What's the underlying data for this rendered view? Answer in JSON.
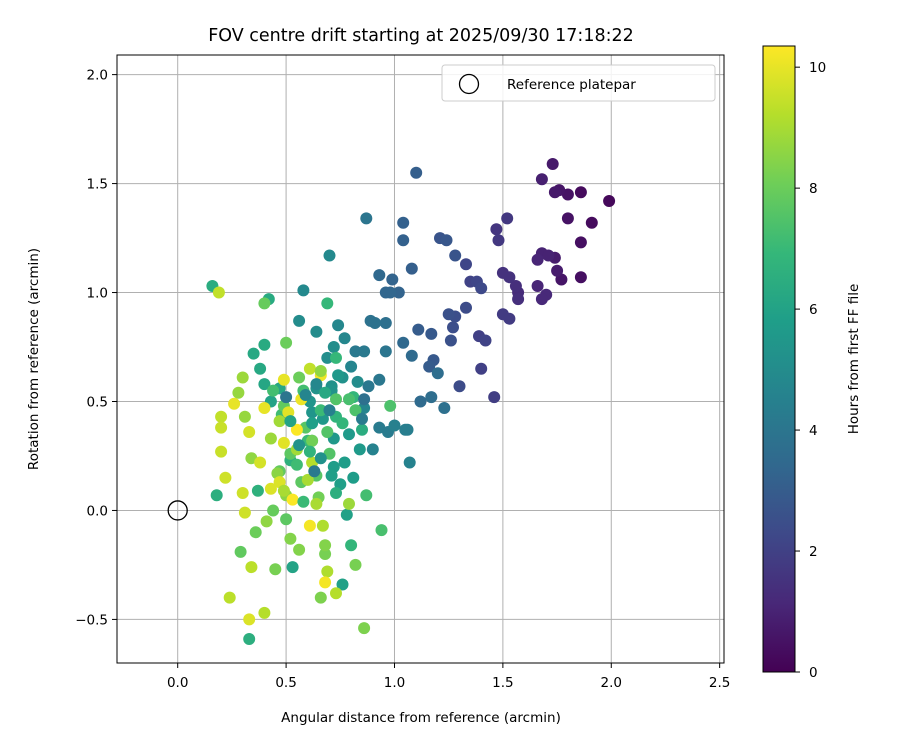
{
  "chart_data": {
    "type": "scatter",
    "title": "FOV centre drift starting at 2025/09/30 17:18:22",
    "xlabel": "Angular distance from reference (arcmin)",
    "ylabel": "Rotation from reference (arcmin)",
    "xlim": [
      -0.28,
      2.52
    ],
    "ylim": [
      -0.7,
      2.09
    ],
    "xticks": [
      0.0,
      0.5,
      1.0,
      1.5,
      2.0,
      2.5
    ],
    "xtick_labels": [
      "0.0",
      "0.5",
      "1.0",
      "1.5",
      "2.0",
      "2.5"
    ],
    "yticks": [
      -0.5,
      0.0,
      0.5,
      1.0,
      1.5,
      2.0
    ],
    "ytick_labels": [
      "−0.5",
      "0.0",
      "0.5",
      "1.0",
      "1.5",
      "2.0"
    ],
    "grid": true,
    "legend": {
      "position": "top-right",
      "entries": [
        "Reference platepar"
      ]
    },
    "reference_point": {
      "x": 0.0,
      "y": 0.0,
      "label": "Reference platepar"
    },
    "colorbar": {
      "label": "Hours from first FF file",
      "range": [
        0,
        10.35
      ],
      "ticks": [
        0,
        2,
        4,
        6,
        8,
        10
      ],
      "tick_labels": [
        "0",
        "2",
        "4",
        "6",
        "8",
        "10"
      ],
      "colormap": "viridis"
    },
    "points_columns": [
      "x",
      "y",
      "hours"
    ],
    "points": [
      [
        1.99,
        1.42,
        0.2
      ],
      [
        1.91,
        1.32,
        0.3
      ],
      [
        1.86,
        1.46,
        0.3
      ],
      [
        1.86,
        1.23,
        0.4
      ],
      [
        1.86,
        1.07,
        0.4
      ],
      [
        1.8,
        1.45,
        0.5
      ],
      [
        1.8,
        1.34,
        0.5
      ],
      [
        1.76,
        1.47,
        0.6
      ],
      [
        1.77,
        1.06,
        0.6
      ],
      [
        1.74,
        1.46,
        0.7
      ],
      [
        1.73,
        1.59,
        0.7
      ],
      [
        1.75,
        1.1,
        0.8
      ],
      [
        1.74,
        1.16,
        0.8
      ],
      [
        1.68,
        1.52,
        0.9
      ],
      [
        1.68,
        1.18,
        1.0
      ],
      [
        1.71,
        1.17,
        1.0
      ],
      [
        1.66,
        1.15,
        1.1
      ],
      [
        1.66,
        1.03,
        1.1
      ],
      [
        1.7,
        0.99,
        1.2
      ],
      [
        1.68,
        0.97,
        1.2
      ],
      [
        1.57,
        1.0,
        1.3
      ],
      [
        1.57,
        0.97,
        1.4
      ],
      [
        1.56,
        1.03,
        1.4
      ],
      [
        1.53,
        1.07,
        1.5
      ],
      [
        1.5,
        1.09,
        1.5
      ],
      [
        1.47,
        1.29,
        1.6
      ],
      [
        1.52,
        1.34,
        1.7
      ],
      [
        1.48,
        1.24,
        1.7
      ],
      [
        1.5,
        0.9,
        1.8
      ],
      [
        1.53,
        0.88,
        1.8
      ],
      [
        1.46,
        0.52,
        1.9
      ],
      [
        1.4,
        0.65,
        2.0
      ],
      [
        1.39,
        0.8,
        2.0
      ],
      [
        1.42,
        0.78,
        2.1
      ],
      [
        1.35,
        1.05,
        2.1
      ],
      [
        1.33,
        1.13,
        2.2
      ],
      [
        1.38,
        1.05,
        2.2
      ],
      [
        1.4,
        1.02,
        2.3
      ],
      [
        1.33,
        0.93,
        2.4
      ],
      [
        1.3,
        0.57,
        2.4
      ],
      [
        1.28,
        0.89,
        2.5
      ],
      [
        1.27,
        0.84,
        2.5
      ],
      [
        1.26,
        0.78,
        2.6
      ],
      [
        1.25,
        0.9,
        2.6
      ],
      [
        1.28,
        1.17,
        2.7
      ],
      [
        1.21,
        1.25,
        2.7
      ],
      [
        1.24,
        1.24,
        2.8
      ],
      [
        1.17,
        0.81,
        2.9
      ],
      [
        1.18,
        0.69,
        2.9
      ],
      [
        1.16,
        0.66,
        3.0
      ],
      [
        1.11,
        0.83,
        3.0
      ],
      [
        1.1,
        1.55,
        3.1
      ],
      [
        1.08,
        1.11,
        3.1
      ],
      [
        1.04,
        1.24,
        3.2
      ],
      [
        1.04,
        1.32,
        3.2
      ],
      [
        1.02,
        1.0,
        3.3
      ],
      [
        0.99,
        1.06,
        3.3
      ],
      [
        0.98,
        1.0,
        3.4
      ],
      [
        0.96,
        1.0,
        3.4
      ],
      [
        0.93,
        1.08,
        3.5
      ],
      [
        1.04,
        0.77,
        3.5
      ],
      [
        1.08,
        0.71,
        3.6
      ],
      [
        1.12,
        0.5,
        3.6
      ],
      [
        1.17,
        0.52,
        3.7
      ],
      [
        1.2,
        0.63,
        3.7
      ],
      [
        1.23,
        0.47,
        3.8
      ],
      [
        0.96,
        0.86,
        3.8
      ],
      [
        0.91,
        0.86,
        3.9
      ],
      [
        0.89,
        0.87,
        3.9
      ],
      [
        0.87,
        1.34,
        4.0
      ],
      [
        0.96,
        0.73,
        4.0
      ],
      [
        0.93,
        0.6,
        4.1
      ],
      [
        0.88,
        0.57,
        4.1
      ],
      [
        0.86,
        0.73,
        4.2
      ],
      [
        0.82,
        0.73,
        4.2
      ],
      [
        0.93,
        0.38,
        4.3
      ],
      [
        0.97,
        0.36,
        4.3
      ],
      [
        1.05,
        0.37,
        4.4
      ],
      [
        1.06,
        0.37,
        4.4
      ],
      [
        1.0,
        0.39,
        4.5
      ],
      [
        1.07,
        0.22,
        4.6
      ],
      [
        0.9,
        0.28,
        4.6
      ],
      [
        0.86,
        0.47,
        4.7
      ],
      [
        0.8,
        0.66,
        4.7
      ],
      [
        0.77,
        0.79,
        4.8
      ],
      [
        0.74,
        0.85,
        4.8
      ],
      [
        0.7,
        1.17,
        4.9
      ],
      [
        0.58,
        1.01,
        4.9
      ],
      [
        0.64,
        0.82,
        5.0
      ],
      [
        0.56,
        0.87,
        5.0
      ],
      [
        0.69,
        0.7,
        5.1
      ],
      [
        0.72,
        0.75,
        5.1
      ],
      [
        0.76,
        0.61,
        5.2
      ],
      [
        0.71,
        0.57,
        5.2
      ],
      [
        0.71,
        0.55,
        5.3
      ],
      [
        0.64,
        0.56,
        5.3
      ],
      [
        0.61,
        0.5,
        5.4
      ],
      [
        0.62,
        0.45,
        5.4
      ],
      [
        0.67,
        0.42,
        5.5
      ],
      [
        0.72,
        0.33,
        5.5
      ],
      [
        0.79,
        0.35,
        5.6
      ],
      [
        0.84,
        0.28,
        5.6
      ],
      [
        0.77,
        0.22,
        5.7
      ],
      [
        0.72,
        0.2,
        5.7
      ],
      [
        0.71,
        0.16,
        5.8
      ],
      [
        0.75,
        0.12,
        5.8
      ],
      [
        0.78,
        -0.02,
        5.9
      ],
      [
        0.76,
        -0.34,
        5.9
      ],
      [
        0.53,
        -0.26,
        6.0
      ],
      [
        0.43,
        0.5,
        6.0
      ],
      [
        0.47,
        0.56,
        6.1
      ],
      [
        0.4,
        0.58,
        6.1
      ],
      [
        0.38,
        0.65,
        6.2
      ],
      [
        0.35,
        0.72,
        6.2
      ],
      [
        0.4,
        0.76,
        6.3
      ],
      [
        0.42,
        0.97,
        6.3
      ],
      [
        0.16,
        1.03,
        6.4
      ],
      [
        0.18,
        0.07,
        6.5
      ],
      [
        0.33,
        -0.59,
        6.5
      ],
      [
        0.37,
        0.09,
        6.6
      ],
      [
        0.52,
        0.23,
        6.6
      ],
      [
        0.62,
        0.32,
        6.7
      ],
      [
        0.73,
        0.43,
        6.7
      ],
      [
        0.76,
        0.4,
        6.8
      ],
      [
        0.81,
        0.52,
        6.8
      ],
      [
        0.73,
        0.7,
        6.9
      ],
      [
        0.69,
        0.95,
        6.9
      ],
      [
        0.66,
        0.46,
        7.0
      ],
      [
        0.6,
        0.32,
        7.0
      ],
      [
        0.55,
        0.21,
        7.1
      ],
      [
        0.48,
        0.44,
        7.1
      ],
      [
        0.44,
        0.55,
        7.2
      ],
      [
        0.87,
        0.07,
        7.2
      ],
      [
        0.94,
        -0.09,
        7.3
      ],
      [
        0.98,
        0.48,
        7.4
      ],
      [
        0.82,
        0.46,
        7.4
      ],
      [
        0.73,
        0.51,
        7.5
      ],
      [
        0.69,
        0.36,
        7.5
      ],
      [
        0.64,
        0.16,
        7.6
      ],
      [
        0.59,
        0.38,
        7.6
      ],
      [
        0.57,
        0.13,
        7.7
      ],
      [
        0.52,
        0.26,
        7.7
      ],
      [
        0.49,
        0.48,
        7.8
      ],
      [
        0.47,
        0.18,
        7.8
      ],
      [
        0.44,
        0.0,
        7.9
      ],
      [
        0.4,
        0.95,
        7.9
      ],
      [
        0.5,
        0.77,
        8.0
      ],
      [
        0.56,
        0.61,
        8.0
      ],
      [
        0.62,
        0.32,
        8.1
      ],
      [
        0.65,
        0.06,
        8.1
      ],
      [
        0.68,
        -0.2,
        8.2
      ],
      [
        0.82,
        -0.25,
        8.2
      ],
      [
        0.86,
        -0.54,
        8.3
      ],
      [
        0.66,
        -0.4,
        8.3
      ],
      [
        0.56,
        -0.18,
        8.4
      ],
      [
        0.52,
        -0.13,
        8.4
      ],
      [
        0.5,
        0.07,
        8.5
      ],
      [
        0.46,
        0.17,
        8.5
      ],
      [
        0.41,
        -0.05,
        8.6
      ],
      [
        0.34,
        0.24,
        8.6
      ],
      [
        0.31,
        0.43,
        8.7
      ],
      [
        0.28,
        0.54,
        8.7
      ],
      [
        0.3,
        0.61,
        8.8
      ],
      [
        0.43,
        0.33,
        8.8
      ],
      [
        0.47,
        0.41,
        8.9
      ],
      [
        0.55,
        0.28,
        8.9
      ],
      [
        0.6,
        0.14,
        9.0
      ],
      [
        0.64,
        0.03,
        9.0
      ],
      [
        0.67,
        -0.07,
        9.1
      ],
      [
        0.69,
        -0.28,
        9.1
      ],
      [
        0.73,
        -0.38,
        9.2
      ],
      [
        0.4,
        -0.47,
        9.2
      ],
      [
        0.24,
        -0.4,
        9.3
      ],
      [
        0.34,
        -0.26,
        9.3
      ],
      [
        0.19,
        1.0,
        9.4
      ],
      [
        0.2,
        0.43,
        9.4
      ],
      [
        0.2,
        0.38,
        9.5
      ],
      [
        0.2,
        0.27,
        9.5
      ],
      [
        0.22,
        0.15,
        9.6
      ],
      [
        0.3,
        0.08,
        9.6
      ],
      [
        0.33,
        0.36,
        9.7
      ],
      [
        0.38,
        0.22,
        9.7
      ],
      [
        0.43,
        0.1,
        9.8
      ],
      [
        0.47,
        0.13,
        9.8
      ],
      [
        0.49,
        0.31,
        9.9
      ],
      [
        0.51,
        0.45,
        9.9
      ],
      [
        0.26,
        0.49,
        10.0
      ],
      [
        0.49,
        0.6,
        10.0
      ],
      [
        0.57,
        0.51,
        10.1
      ],
      [
        0.66,
        0.62,
        10.1
      ],
      [
        0.68,
        -0.33,
        10.2
      ],
      [
        0.61,
        -0.07,
        10.2
      ],
      [
        0.53,
        0.05,
        10.3
      ],
      [
        0.55,
        0.37,
        10.3
      ],
      [
        0.4,
        0.47,
        10.0
      ],
      [
        0.33,
        -0.5,
        9.8
      ],
      [
        0.31,
        -0.01,
        9.6
      ],
      [
        0.61,
        0.65,
        9.4
      ],
      [
        0.62,
        0.22,
        9.2
      ],
      [
        0.49,
        0.09,
        9.0
      ],
      [
        0.79,
        0.03,
        8.8
      ],
      [
        0.66,
        0.64,
        8.6
      ],
      [
        0.68,
        -0.16,
        8.4
      ],
      [
        0.45,
        -0.27,
        8.2
      ],
      [
        0.36,
        -0.1,
        8.0
      ],
      [
        0.29,
        -0.19,
        7.8
      ],
      [
        0.5,
        -0.04,
        7.7
      ],
      [
        0.7,
        0.26,
        7.5
      ],
      [
        0.79,
        0.51,
        7.3
      ],
      [
        0.58,
        0.55,
        7.2
      ],
      [
        0.58,
        0.04,
        7.0
      ],
      [
        0.8,
        -0.16,
        6.8
      ],
      [
        0.61,
        0.27,
        6.7
      ],
      [
        0.73,
        0.08,
        6.5
      ],
      [
        0.85,
        0.37,
        6.4
      ],
      [
        0.68,
        0.54,
        6.2
      ],
      [
        0.52,
        0.41,
        6.0
      ],
      [
        0.62,
        0.4,
        5.8
      ],
      [
        0.81,
        0.15,
        5.7
      ],
      [
        0.74,
        0.62,
        5.5
      ],
      [
        0.56,
        0.3,
        5.3
      ],
      [
        0.66,
        0.24,
        5.2
      ],
      [
        0.83,
        0.59,
        5.0
      ],
      [
        0.64,
        0.58,
        4.8
      ],
      [
        0.59,
        0.53,
        4.7
      ],
      [
        0.7,
        0.46,
        4.5
      ],
      [
        0.85,
        0.42,
        4.3
      ],
      [
        0.63,
        0.18,
        4.2
      ],
      [
        0.5,
        0.52,
        4.0
      ],
      [
        0.86,
        0.51,
        3.8
      ]
    ]
  }
}
